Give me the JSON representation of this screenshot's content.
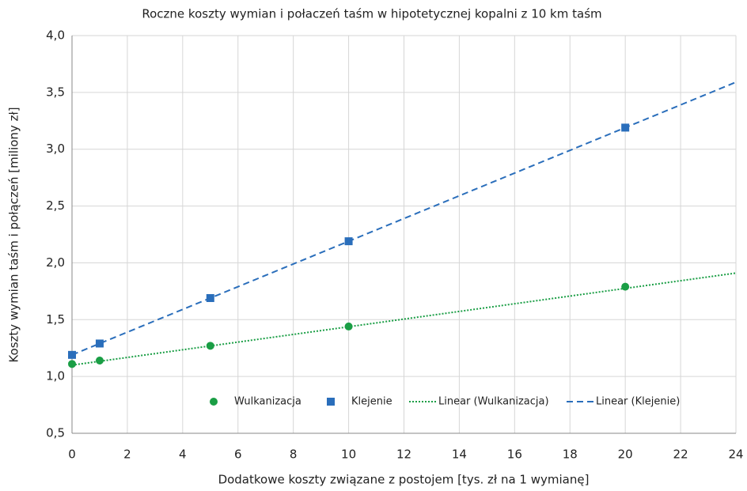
{
  "chart_data": {
    "type": "scatter",
    "title": "Roczne koszty wymian i połaczeń taśm w hipotetycznej kopalni z 10 km taśm",
    "x_label": "Dodatkowe koszty związane z postojem [tys. zł na 1 wymianę]",
    "y_label": "Koszty wymian taśm i połączeń [miliony zł]",
    "xlim": [
      0,
      24
    ],
    "ylim": [
      0.5,
      4
    ],
    "xticks": [
      0,
      2,
      4,
      6,
      8,
      10,
      12,
      14,
      16,
      18,
      20,
      22,
      24
    ],
    "yticks": [
      {
        "value": 0.5,
        "label": "0,5"
      },
      {
        "value": 1,
        "label": "1,0"
      },
      {
        "value": 1.5,
        "label": "1,5"
      },
      {
        "value": 2,
        "label": "2,0"
      },
      {
        "value": 2.5,
        "label": "2,5"
      },
      {
        "value": 3,
        "label": "3,0"
      },
      {
        "value": 3.5,
        "label": "3,5"
      },
      {
        "value": 4,
        "label": "4,0"
      }
    ],
    "grid": true,
    "legend": "bottom",
    "series": [
      {
        "name": "Wulkanizacja",
        "color": "#1a9e45",
        "marker": "circle",
        "x": [
          0,
          1,
          5,
          10,
          20
        ],
        "values": [
          1.11,
          1.14,
          1.27,
          1.44,
          1.79
        ]
      },
      {
        "name": "Klejenie",
        "color": "#2a6ebb",
        "marker": "square",
        "x": [
          0,
          1,
          5,
          10,
          20
        ],
        "values": [
          1.19,
          1.29,
          1.69,
          2.19,
          3.19
        ]
      },
      {
        "name": "Linear (Wulkanizacja)",
        "color": "#1a9e45",
        "line_style": "dotted",
        "x": [
          0,
          24
        ],
        "values": [
          1.1,
          1.91
        ]
      },
      {
        "name": "Linear (Klejenie)",
        "color": "#2a6ebb",
        "line_style": "dashed",
        "x": [
          0,
          24
        ],
        "values": [
          1.19,
          3.59
        ]
      }
    ]
  }
}
